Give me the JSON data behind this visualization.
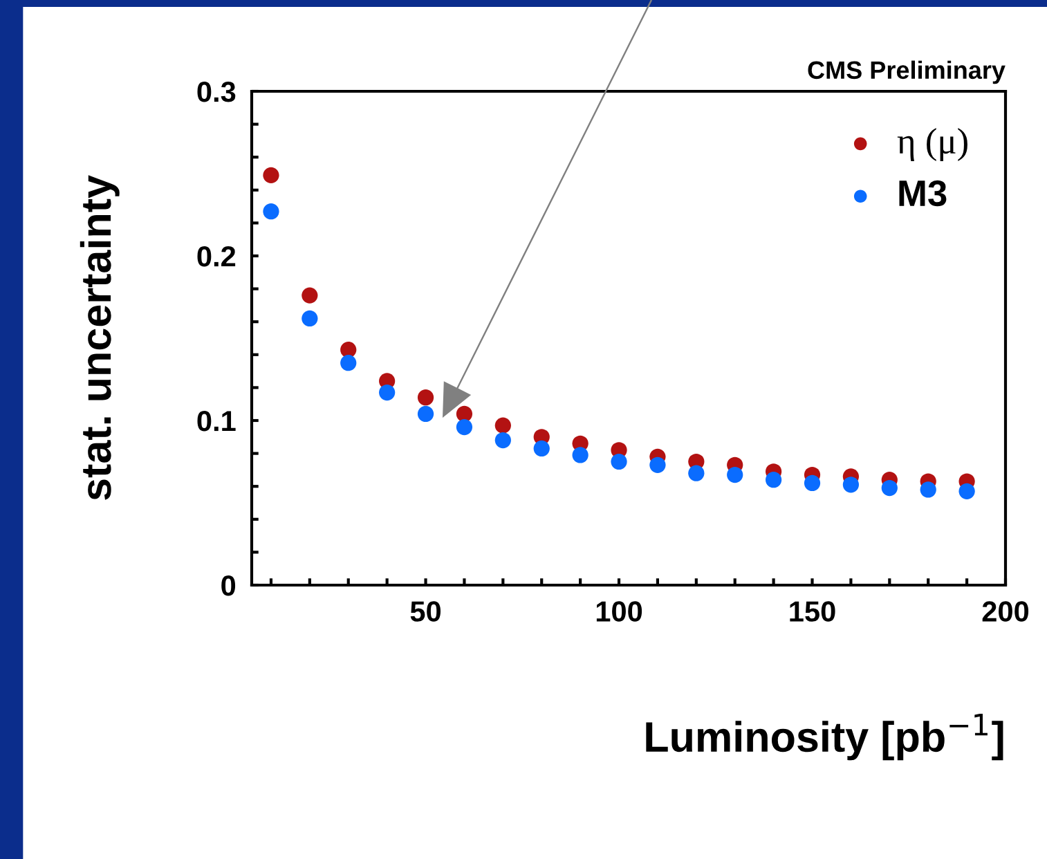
{
  "chart_data": {
    "type": "scatter",
    "xlabel": "Luminosity [pb$^{−1}$]",
    "ylabel": "stat. uncertainty",
    "annotations": [
      "CMS Preliminary"
    ],
    "x": [
      10,
      20,
      30,
      40,
      50,
      60,
      70,
      80,
      90,
      100,
      110,
      120,
      130,
      140,
      150,
      160,
      170,
      180,
      190
    ],
    "series": [
      {
        "name": "η (μ)",
        "color": "#b31212",
        "values": [
          0.249,
          0.176,
          0.143,
          0.124,
          0.114,
          0.104,
          0.097,
          0.09,
          0.086,
          0.082,
          0.078,
          0.075,
          0.073,
          0.069,
          0.067,
          0.066,
          0.064,
          0.063,
          0.063
        ]
      },
      {
        "name": "M3",
        "color": "#0a6cff",
        "values": [
          0.227,
          0.162,
          0.135,
          0.117,
          0.104,
          0.096,
          0.088,
          0.083,
          0.079,
          0.075,
          0.073,
          0.068,
          0.067,
          0.064,
          0.062,
          0.061,
          0.059,
          0.058,
          0.057
        ]
      }
    ],
    "xlim": [
      5,
      200
    ],
    "ylim": [
      0,
      0.3
    ],
    "xticks": [
      {
        "value": 10,
        "label": null
      },
      {
        "value": 20,
        "label": null
      },
      {
        "value": 30,
        "label": null
      },
      {
        "value": 40,
        "label": null
      },
      50,
      {
        "value": 60,
        "label": null
      },
      {
        "value": 70,
        "label": null
      },
      {
        "value": 80,
        "label": null
      },
      {
        "value": 90,
        "label": null
      },
      100,
      {
        "value": 110,
        "label": null
      },
      {
        "value": 120,
        "label": null
      },
      {
        "value": 130,
        "label": null
      },
      {
        "value": 140,
        "label": null
      },
      150,
      {
        "value": 160,
        "label": null
      },
      {
        "value": 170,
        "label": null
      },
      {
        "value": 180,
        "label": null
      },
      {
        "value": 190,
        "label": null
      },
      200
    ],
    "yticks": [
      0,
      {
        "value": 0.02,
        "label": null
      },
      {
        "value": 0.04,
        "label": null
      },
      {
        "value": 0.06,
        "label": null
      },
      {
        "value": 0.08,
        "label": null
      },
      0.1,
      {
        "value": 0.12,
        "label": null
      },
      {
        "value": 0.14,
        "label": null
      },
      {
        "value": 0.16,
        "label": null
      },
      {
        "value": 0.18,
        "label": null
      },
      0.2,
      {
        "value": 0.22,
        "label": null
      },
      {
        "value": 0.24,
        "label": null
      },
      {
        "value": 0.26,
        "label": null
      },
      {
        "value": 0.28,
        "label": null
      },
      0.3
    ],
    "marker": "circle",
    "grid": false,
    "legend": "top right"
  }
}
